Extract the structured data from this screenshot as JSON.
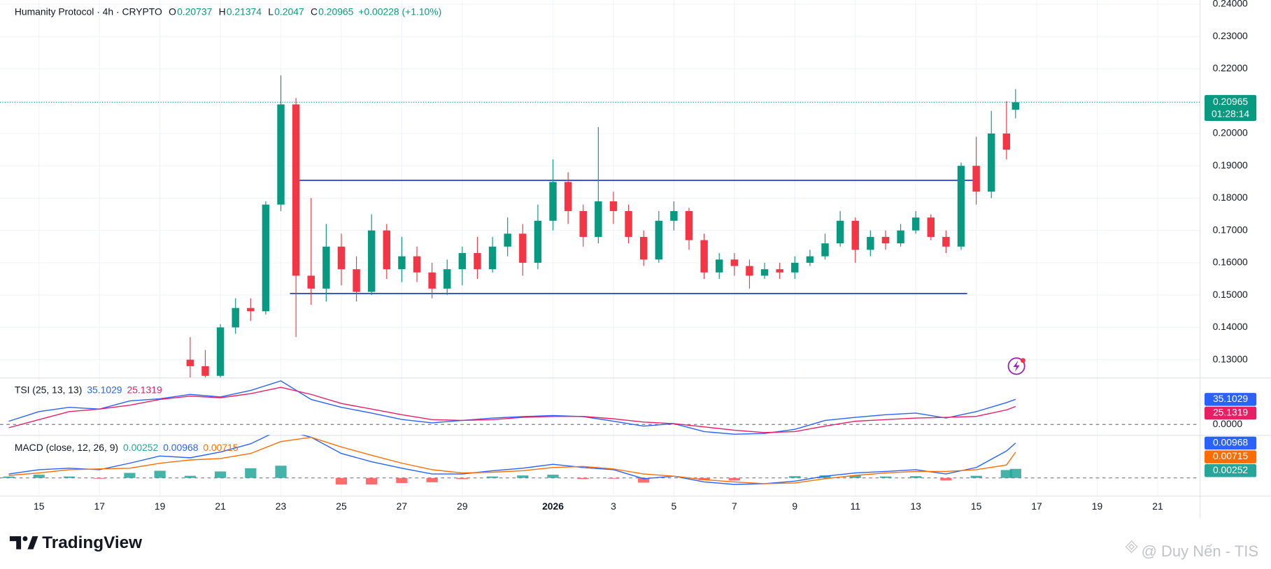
{
  "chart_data": [
    {
      "type": "candlestick",
      "title": "Humanity Protocol · 4h · CRYPTO",
      "ohlc_keys": [
        "O",
        "H",
        "L",
        "C"
      ],
      "change": "+0.00228 (+1.10%)",
      "countdown": "01:28:14",
      "up_color": "#089981",
      "down_color": "#f23645",
      "grid": true,
      "ylim": [
        0.1245,
        0.2413
      ],
      "yticks": [
        {
          "value": 0.13,
          "label": "0.13000"
        },
        {
          "value": 0.14,
          "label": "0.14000"
        },
        {
          "value": 0.15,
          "label": "0.15000"
        },
        {
          "value": 0.16,
          "label": "0.16000"
        },
        {
          "value": 0.17,
          "label": "0.17000"
        },
        {
          "value": 0.18,
          "label": "0.18000"
        },
        {
          "value": 0.19,
          "label": "0.19000"
        },
        {
          "value": 0.2,
          "label": "0.20000"
        },
        {
          "value": 0.21,
          "label": "0.21000"
        },
        {
          "value": 0.22,
          "label": "0.22000"
        },
        {
          "value": 0.23,
          "label": "0.23000"
        },
        {
          "value": 0.24,
          "label": "0.24000"
        }
      ],
      "xlim": [
        -1.29,
        38.39
      ],
      "xticks": [
        {
          "value": 0,
          "label": "15"
        },
        {
          "value": 2,
          "label": "17"
        },
        {
          "value": 4,
          "label": "19"
        },
        {
          "value": 6,
          "label": "21"
        },
        {
          "value": 8,
          "label": "23"
        },
        {
          "value": 10,
          "label": "25"
        },
        {
          "value": 12,
          "label": "27"
        },
        {
          "value": 14,
          "label": "29"
        },
        {
          "value": 17,
          "label": "2026"
        },
        {
          "value": 19,
          "label": "3"
        },
        {
          "value": 21,
          "label": "5"
        },
        {
          "value": 23,
          "label": "7"
        },
        {
          "value": 25,
          "label": "9"
        },
        {
          "value": 27,
          "label": "11"
        },
        {
          "value": 29,
          "label": "13"
        },
        {
          "value": 31,
          "label": "15"
        },
        {
          "value": 33,
          "label": "17"
        },
        {
          "value": 35,
          "label": "19"
        },
        {
          "value": 37,
          "label": "21"
        }
      ],
      "x": [
        5,
        5.5,
        6,
        6.5,
        7,
        7.5,
        8,
        8.5,
        9,
        9.5,
        10,
        10.5,
        11,
        11.5,
        12,
        12.5,
        13,
        13.5,
        14,
        14.5,
        15,
        15.5,
        16,
        16.5,
        17,
        17.5,
        18,
        18.5,
        19,
        19.5,
        20,
        20.5,
        21,
        21.5,
        22,
        22.5,
        23,
        23.5,
        24,
        24.5,
        25,
        25.5,
        26,
        26.5,
        27,
        27.5,
        28,
        28.5,
        29,
        29.5,
        30,
        30.5,
        31,
        31.5,
        32,
        32.3
      ],
      "candles": [
        [
          0.13,
          0.137,
          0.124,
          0.128
        ],
        [
          0.128,
          0.133,
          0.122,
          0.125
        ],
        [
          0.125,
          0.141,
          0.124,
          0.14
        ],
        [
          0.14,
          0.149,
          0.138,
          0.146
        ],
        [
          0.146,
          0.149,
          0.142,
          0.145
        ],
        [
          0.145,
          0.179,
          0.144,
          0.178
        ],
        [
          0.178,
          0.218,
          0.176,
          0.209
        ],
        [
          0.209,
          0.211,
          0.137,
          0.156
        ],
        [
          0.156,
          0.18,
          0.147,
          0.152
        ],
        [
          0.152,
          0.172,
          0.148,
          0.165
        ],
        [
          0.165,
          0.169,
          0.153,
          0.158
        ],
        [
          0.158,
          0.162,
          0.148,
          0.151
        ],
        [
          0.151,
          0.175,
          0.15,
          0.17
        ],
        [
          0.17,
          0.172,
          0.155,
          0.158
        ],
        [
          0.158,
          0.168,
          0.154,
          0.162
        ],
        [
          0.162,
          0.165,
          0.154,
          0.157
        ],
        [
          0.157,
          0.16,
          0.149,
          0.152
        ],
        [
          0.152,
          0.161,
          0.15,
          0.158
        ],
        [
          0.158,
          0.165,
          0.153,
          0.163
        ],
        [
          0.163,
          0.168,
          0.155,
          0.158
        ],
        [
          0.158,
          0.168,
          0.157,
          0.165
        ],
        [
          0.165,
          0.174,
          0.162,
          0.169
        ],
        [
          0.169,
          0.172,
          0.156,
          0.16
        ],
        [
          0.16,
          0.178,
          0.158,
          0.173
        ],
        [
          0.173,
          0.192,
          0.17,
          0.185
        ],
        [
          0.185,
          0.188,
          0.172,
          0.176
        ],
        [
          0.176,
          0.178,
          0.165,
          0.168
        ],
        [
          0.168,
          0.202,
          0.166,
          0.179
        ],
        [
          0.179,
          0.182,
          0.172,
          0.176
        ],
        [
          0.176,
          0.178,
          0.166,
          0.168
        ],
        [
          0.168,
          0.17,
          0.159,
          0.161
        ],
        [
          0.161,
          0.176,
          0.16,
          0.173
        ],
        [
          0.173,
          0.179,
          0.17,
          0.176
        ],
        [
          0.176,
          0.177,
          0.164,
          0.167
        ],
        [
          0.167,
          0.169,
          0.155,
          0.157
        ],
        [
          0.157,
          0.163,
          0.155,
          0.161
        ],
        [
          0.161,
          0.163,
          0.156,
          0.159
        ],
        [
          0.159,
          0.161,
          0.152,
          0.156
        ],
        [
          0.156,
          0.16,
          0.155,
          0.158
        ],
        [
          0.158,
          0.16,
          0.155,
          0.157
        ],
        [
          0.157,
          0.162,
          0.155,
          0.16
        ],
        [
          0.16,
          0.164,
          0.159,
          0.162
        ],
        [
          0.162,
          0.169,
          0.161,
          0.166
        ],
        [
          0.166,
          0.176,
          0.165,
          0.173
        ],
        [
          0.173,
          0.174,
          0.16,
          0.164
        ],
        [
          0.164,
          0.17,
          0.162,
          0.168
        ],
        [
          0.168,
          0.17,
          0.164,
          0.166
        ],
        [
          0.166,
          0.172,
          0.165,
          0.17
        ],
        [
          0.17,
          0.176,
          0.169,
          0.174
        ],
        [
          0.174,
          0.175,
          0.167,
          0.168
        ],
        [
          0.168,
          0.17,
          0.163,
          0.165
        ],
        [
          0.165,
          0.191,
          0.164,
          0.19
        ],
        [
          0.19,
          0.199,
          0.178,
          0.182
        ],
        [
          0.182,
          0.207,
          0.18,
          0.2
        ],
        [
          0.2,
          0.21,
          0.192,
          0.195
        ],
        [
          0.20737,
          0.21374,
          0.2047,
          0.20965
        ]
      ],
      "lines": [
        {
          "y": 0.1855,
          "x": [
            8.5,
            30.9
          ],
          "color": "#1e3fcf"
        },
        {
          "y": 0.1505,
          "x": [
            8.3,
            30.7
          ],
          "color": "#1e3fcf"
        }
      ]
    },
    {
      "type": "line",
      "title": "TSI (25, 13, 13)",
      "ylim": [
        -14.7,
        65.7
      ],
      "yticks": [
        {
          "value": 0,
          "label": "0.0000"
        }
      ],
      "x": [
        -1,
        0,
        1,
        2,
        3,
        4,
        5,
        6,
        7,
        8,
        9,
        10,
        11,
        12,
        13,
        14,
        15,
        16,
        17,
        18,
        19,
        20,
        21,
        22,
        23,
        24,
        25,
        26,
        27,
        28,
        29,
        30,
        31,
        32,
        32.3
      ],
      "series": [
        {
          "color": "#2962ff",
          "values": [
            4.5,
            18,
            24,
            21.5,
            33,
            36,
            42,
            38.5,
            47.6,
            61,
            35,
            24,
            16,
            7,
            2.3,
            5.7,
            9,
            11,
            12.5,
            11,
            4.5,
            -2.3,
            1.1,
            -10,
            -13.6,
            -12.5,
            -6.8,
            5.7,
            10,
            13.6,
            16,
            9,
            18,
            30.6,
            35.1029
          ]
        },
        {
          "color": "#e91e63",
          "values": [
            -4.5,
            6.8,
            18,
            21.5,
            27,
            35,
            39.6,
            37.4,
            43,
            52,
            42,
            29.4,
            21.5,
            13.6,
            6.8,
            5.7,
            6.8,
            10,
            11.3,
            11.3,
            8,
            3.4,
            1.1,
            -3.4,
            -8,
            -11.3,
            -10,
            -2.3,
            4.5,
            6.8,
            9,
            10,
            11.3,
            20.4,
            25.1319
          ]
        }
      ]
    },
    {
      "type": "macd",
      "title": "MACD (close, 12, 26, 9)",
      "ylim": [
        -0.00495,
        0.01193
      ],
      "x": [
        -1,
        0,
        1,
        2,
        3,
        4,
        5,
        6,
        7,
        8,
        9,
        10,
        11,
        12,
        13,
        14,
        15,
        16,
        17,
        18,
        19,
        20,
        21,
        22,
        23,
        24,
        25,
        26,
        27,
        28,
        29,
        30,
        31,
        32,
        32.3
      ],
      "histogram": {
        "up_color": "#26a69a",
        "down_color": "#ff5252",
        "values": [
          0.0004,
          0.0009,
          0.0004,
          -0.0002,
          0.0014,
          0.002,
          0.0006,
          0.0018,
          0.0027,
          0.0034,
          0,
          -0.0018,
          -0.0018,
          -0.0014,
          -0.0012,
          -0.0003,
          0.0004,
          0.0007,
          0.0009,
          -0.0003,
          -0.0002,
          -0.0013,
          0,
          -0.0006,
          -0.0007,
          0,
          0.0005,
          0.0007,
          0.0007,
          0.0004,
          0.0005,
          -0.0007,
          0.0006,
          0.0022,
          0.00252
        ]
      },
      "series": [
        {
          "color": "#2962ff",
          "values": [
            0.0011,
            0.0023,
            0.0027,
            0.0023,
            0.0041,
            0.0061,
            0.0056,
            0.0072,
            0.0095,
            0.0135,
            0.0113,
            0.0068,
            0.0045,
            0.0027,
            0.0011,
            0.0011,
            0.002,
            0.0027,
            0.0038,
            0.0029,
            0.0023,
            -0.0002,
            0.0005,
            -0.0011,
            -0.0018,
            -0.0016,
            -0.0009,
            0.0005,
            0.0014,
            0.0018,
            0.0023,
            0.0011,
            0.0029,
            0.0075,
            0.00968
          ]
        },
        {
          "color": "#ff6d00",
          "values": [
            0.0007,
            0.0014,
            0.0023,
            0.0025,
            0.0027,
            0.0041,
            0.005,
            0.0054,
            0.0068,
            0.0101,
            0.0113,
            0.0086,
            0.0063,
            0.0041,
            0.0023,
            0.0014,
            0.0016,
            0.002,
            0.0029,
            0.0032,
            0.0025,
            0.0011,
            0.0005,
            -0.0005,
            -0.0011,
            -0.0016,
            -0.0014,
            -0.0002,
            0.0007,
            0.0014,
            0.0018,
            0.0018,
            0.0023,
            0.0036,
            0.00715
          ]
        }
      ]
    }
  ],
  "footer": {
    "brand": "TradingView",
    "watermark": "@ Duy Nến - TIS"
  }
}
